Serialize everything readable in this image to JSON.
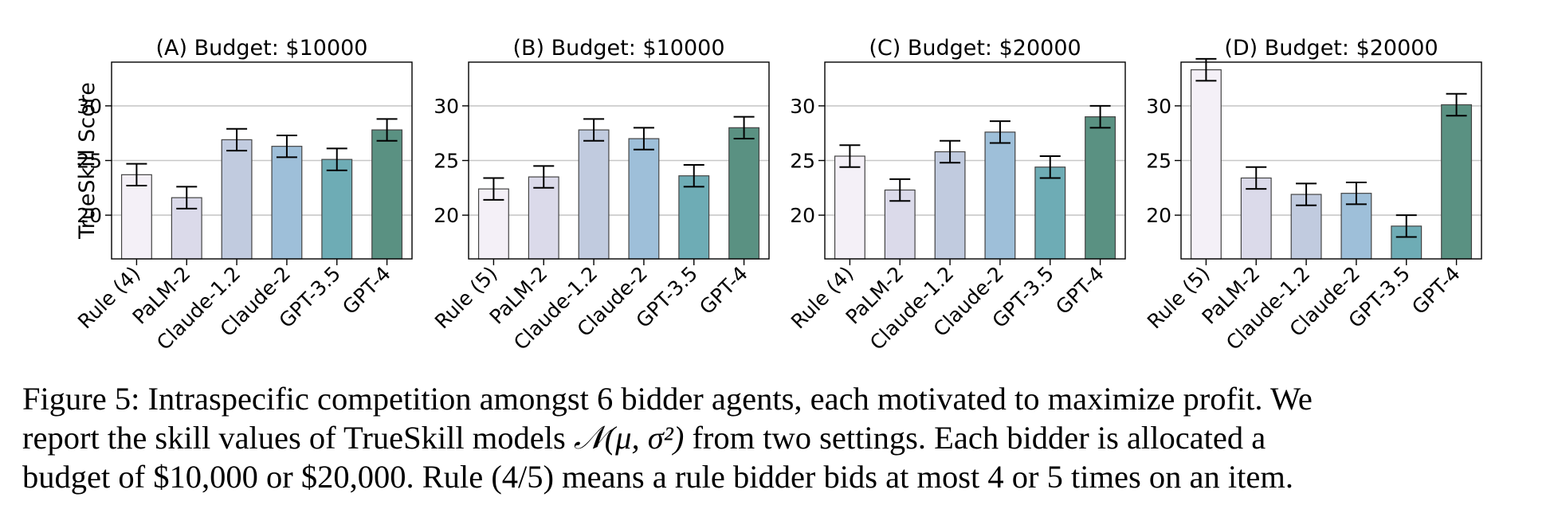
{
  "chart_data": [
    {
      "type": "bar",
      "title": "(A) Budget: $10000",
      "ylabel": "TrueSkill Score",
      "xlabel": "",
      "ylim": [
        16,
        34
      ],
      "yticks": [
        "20",
        "25",
        "30"
      ],
      "grid": "horizontal",
      "categories": [
        "Rule (4)",
        "PaLM-2",
        "Claude-1.2",
        "Claude-2",
        "GPT-3.5",
        "GPT-4"
      ],
      "values": [
        23.7,
        21.6,
        26.9,
        26.3,
        25.1,
        27.8
      ],
      "errors": [
        1.0,
        1.0,
        1.0,
        1.0,
        1.0,
        1.0
      ],
      "colors": [
        "#f4f0f7",
        "#dbdaea",
        "#c1cbdf",
        "#9ebfd9",
        "#6eacb5",
        "#5a9182"
      ]
    },
    {
      "type": "bar",
      "title": "(B) Budget: $10000",
      "ylabel": "",
      "xlabel": "",
      "ylim": [
        16,
        34
      ],
      "yticks": [
        "20",
        "25",
        "30"
      ],
      "grid": "horizontal",
      "categories": [
        "Rule (5)",
        "PaLM-2",
        "Claude-1.2",
        "Claude-2",
        "GPT-3.5",
        "GPT-4"
      ],
      "values": [
        22.4,
        23.5,
        27.8,
        27.0,
        23.6,
        28.0
      ],
      "errors": [
        1.0,
        1.0,
        1.0,
        1.0,
        1.0,
        1.0
      ],
      "colors": [
        "#f4f0f7",
        "#dbdaea",
        "#c1cbdf",
        "#9ebfd9",
        "#6eacb5",
        "#5a9182"
      ]
    },
    {
      "type": "bar",
      "title": "(C) Budget: $20000",
      "ylabel": "",
      "xlabel": "",
      "ylim": [
        16,
        34
      ],
      "yticks": [
        "20",
        "25",
        "30"
      ],
      "grid": "horizontal",
      "categories": [
        "Rule (4)",
        "PaLM-2",
        "Claude-1.2",
        "Claude-2",
        "GPT-3.5",
        "GPT-4"
      ],
      "values": [
        25.4,
        22.3,
        25.8,
        27.6,
        24.4,
        29.0
      ],
      "errors": [
        1.0,
        1.0,
        1.0,
        1.0,
        1.0,
        1.0
      ],
      "colors": [
        "#f4f0f7",
        "#dbdaea",
        "#c1cbdf",
        "#9ebfd9",
        "#6eacb5",
        "#5a9182"
      ]
    },
    {
      "type": "bar",
      "title": "(D) Budget: $20000",
      "ylabel": "",
      "xlabel": "",
      "ylim": [
        16,
        34
      ],
      "yticks": [
        "20",
        "25",
        "30"
      ],
      "grid": "horizontal",
      "categories": [
        "Rule (5)",
        "PaLM-2",
        "Claude-1.2",
        "Claude-2",
        "GPT-3.5",
        "GPT-4"
      ],
      "values": [
        33.3,
        23.4,
        21.9,
        22.0,
        19.0,
        30.1
      ],
      "errors": [
        1.0,
        1.0,
        1.0,
        1.0,
        1.0,
        1.0
      ],
      "colors": [
        "#f4f0f7",
        "#dbdaea",
        "#c1cbdf",
        "#9ebfd9",
        "#6eacb5",
        "#5a9182"
      ]
    }
  ],
  "caption": {
    "line1": "Figure 5: Intraspecific competition amongst 6 bidder agents, each motivated to maximize profit. We",
    "line2_pre": "report the skill values of TrueSkill models ",
    "line2_math": "𝒩(μ, σ²)",
    "line2_post": " from two settings. Each bidder is allocated a",
    "line3": "budget of $10,000 or $20,000. Rule (4/5) means a rule bidder bids at most 4 or 5 times on an item."
  }
}
